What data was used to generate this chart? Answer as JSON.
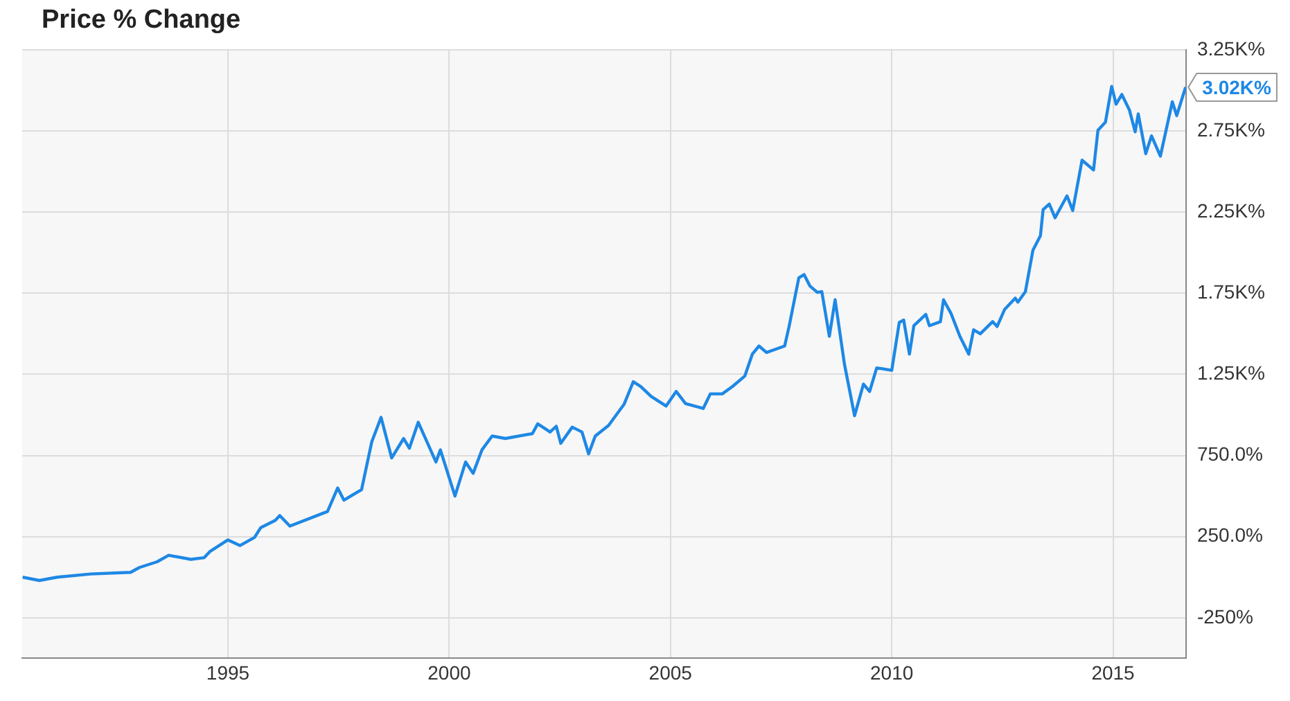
{
  "chart_data": {
    "type": "line",
    "title": "Price % Change",
    "x": [
      1990.36,
      1990.74,
      1991.14,
      1991.9,
      1992.8,
      1993.0,
      1993.4,
      1993.66,
      1994.16,
      1994.46,
      1994.6,
      1995.0,
      1995.27,
      1995.6,
      1995.74,
      1996.07,
      1996.17,
      1996.4,
      1997.25,
      1997.48,
      1997.62,
      1998.02,
      1998.25,
      1998.46,
      1998.7,
      1998.97,
      1999.1,
      1999.3,
      1999.7,
      1999.8,
      2000.13,
      2000.37,
      2000.54,
      2000.74,
      2000.97,
      2001.27,
      2001.88,
      2002.0,
      2002.28,
      2002.42,
      2002.52,
      2002.78,
      2003.0,
      2003.15,
      2003.3,
      2003.6,
      2003.95,
      2004.16,
      2004.33,
      2004.56,
      2004.9,
      2005.13,
      2005.34,
      2005.74,
      2005.9,
      2006.17,
      2006.4,
      2006.68,
      2006.85,
      2007.0,
      2007.17,
      2007.58,
      2007.68,
      2007.9,
      2008.02,
      2008.15,
      2008.32,
      2008.42,
      2008.59,
      2008.72,
      2008.93,
      2009.16,
      2009.36,
      2009.5,
      2009.66,
      2010.0,
      2010.17,
      2010.27,
      2010.4,
      2010.5,
      2010.77,
      2010.85,
      2011.1,
      2011.17,
      2011.34,
      2011.54,
      2011.74,
      2011.85,
      2012.0,
      2012.28,
      2012.38,
      2012.55,
      2012.79,
      2012.85,
      2013.02,
      2013.19,
      2013.36,
      2013.42,
      2013.56,
      2013.69,
      2013.96,
      2014.09,
      2014.3,
      2014.56,
      2014.66,
      2014.83,
      2014.97,
      2015.07,
      2015.2,
      2015.37,
      2015.5,
      2015.57,
      2015.74,
      2015.87,
      2016.07,
      2016.34,
      2016.44,
      2016.64
    ],
    "series": [
      {
        "color": "#1e88e5",
        "values": [
          0,
          -20,
          0,
          20,
          30,
          60,
          95,
          135,
          110,
          120,
          160,
          230,
          195,
          245,
          305,
          350,
          380,
          315,
          405,
          550,
          475,
          540,
          835,
          985,
          735,
          855,
          795,
          955,
          710,
          785,
          500,
          710,
          640,
          785,
          870,
          855,
          885,
          945,
          895,
          930,
          825,
          925,
          895,
          760,
          870,
          935,
          1065,
          1205,
          1175,
          1115,
          1055,
          1145,
          1070,
          1040,
          1130,
          1130,
          1175,
          1240,
          1375,
          1425,
          1385,
          1425,
          1545,
          1845,
          1865,
          1795,
          1755,
          1760,
          1485,
          1710,
          1315,
          995,
          1190,
          1145,
          1290,
          1275,
          1570,
          1585,
          1375,
          1550,
          1620,
          1550,
          1575,
          1710,
          1625,
          1485,
          1375,
          1525,
          1500,
          1575,
          1545,
          1650,
          1720,
          1695,
          1760,
          2015,
          2105,
          2265,
          2300,
          2215,
          2350,
          2260,
          2570,
          2510,
          2755,
          2805,
          3025,
          2915,
          2975,
          2880,
          2745,
          2855,
          2610,
          2720,
          2595,
          2930,
          2845,
          3020
        ]
      }
    ],
    "xlim": [
      1990.35,
      2016.65
    ],
    "xticks": [
      1995,
      2000,
      2005,
      2010,
      2015
    ],
    "ylim": [
      -500,
      3250
    ],
    "yticks": [
      {
        "value": -250,
        "label": "-250%"
      },
      {
        "value": 250,
        "label": "250.0%"
      },
      {
        "value": 750,
        "label": "750.0%"
      },
      {
        "value": 1250,
        "label": "1.25K%"
      },
      {
        "value": 1750,
        "label": "1.75K%"
      },
      {
        "value": 2250,
        "label": "2.25K%"
      },
      {
        "value": 2750,
        "label": "2.75K%"
      },
      {
        "value": 3250,
        "label": "3.25K%"
      }
    ],
    "annotations": [
      {
        "text": "3.02K%",
        "x": 2016.64,
        "y": 3020
      }
    ],
    "grid": true,
    "legend": false,
    "marker": "none",
    "line_style": "solid"
  }
}
